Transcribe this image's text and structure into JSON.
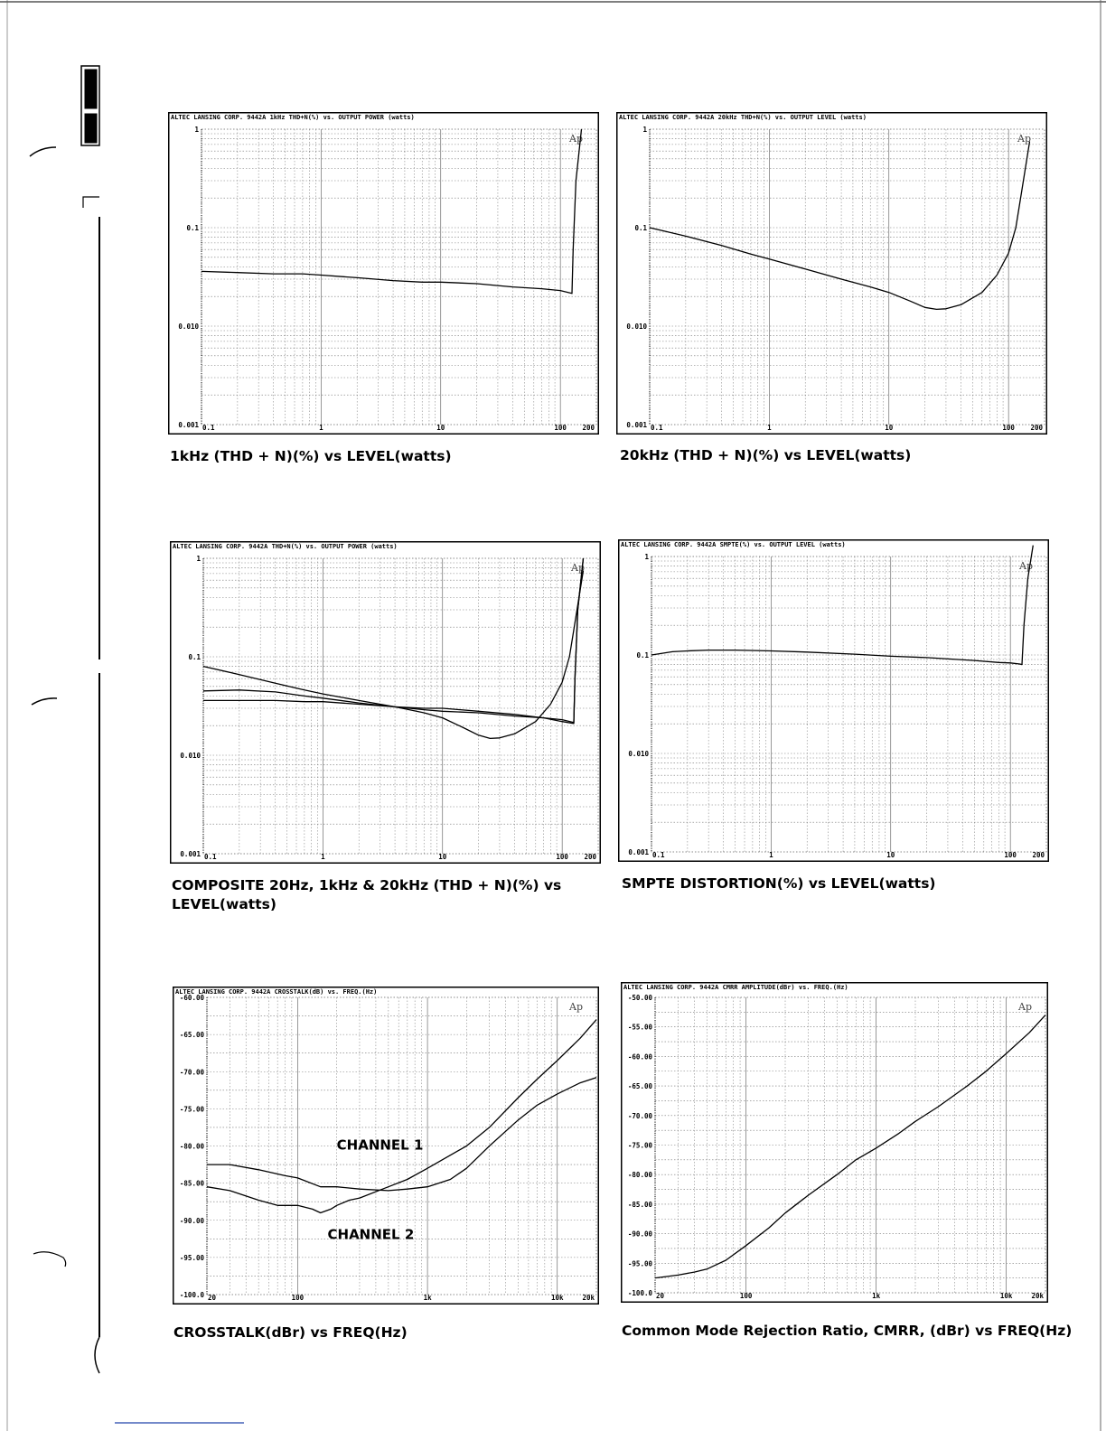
{
  "charts": [
    {
      "id": "c1",
      "header": "ALTEC LANSING CORP.  9442A  1kHz  THD+N(%)  vs.  OUTPUT POWER (watts)",
      "logo": "Ap",
      "caption": "1kHz (THD + N)(%) vs LEVEL(watts)"
    },
    {
      "id": "c2",
      "header": "ALTEC LANSING CORP.  9442A  20kHz  THD+N(%)  vs.  OUTPUT LEVEL (watts)",
      "logo": "Ap",
      "caption": "20kHz (THD + N)(%) vs LEVEL(watts)"
    },
    {
      "id": "c3",
      "header": "ALTEC LANSING CORP.  9442A  THD+N(%)  vs.  OUTPUT POWER (watts)",
      "logo": "Ap",
      "caption": "COMPOSITE 20Hz, 1kHz & 20kHz (THD + N)(%) vs LEVEL(watts)"
    },
    {
      "id": "c4",
      "header": "ALTEC LANSING CORP.  9442A  SMPTE(%)  vs.  OUTPUT LEVEL (watts)",
      "logo": "Ap",
      "caption": "SMPTE DISTORTION(%) vs LEVEL(watts)"
    },
    {
      "id": "c5",
      "header": "ALTEC LANSING CORP.  9442A  CROSSTALK(dB)  vs.  FREQ.(Hz)",
      "logo": "Ap",
      "caption": "CROSSTALK(dBr) vs FREQ(Hz)",
      "annotations": [
        "CHANNEL 1",
        "CHANNEL 2"
      ]
    },
    {
      "id": "c6",
      "header": "ALTEC LANSING CORP.  9442A  CMRR AMPLITUDE(dBr)  vs.  FREQ.(Hz)",
      "logo": "Ap",
      "caption": "Common Mode Rejection Ratio, CMRR, (dBr) vs FREQ(Hz)"
    }
  ],
  "chart_data": [
    {
      "type": "line",
      "title": "",
      "x_scale": "log",
      "y_scale": "log",
      "xlim": [
        0.1,
        200
      ],
      "ylim": [
        0.001,
        1
      ],
      "x_ticks": [
        {
          "v": 0.1,
          "label": "0.1"
        },
        {
          "v": 1,
          "label": "1"
        },
        {
          "v": 10,
          "label": "10"
        },
        {
          "v": 100,
          "label": "100"
        },
        {
          "v": 200,
          "label": "200"
        }
      ],
      "y_ticks": [
        {
          "v": 1,
          "label": "1"
        },
        {
          "v": 0.1,
          "label": "0.1"
        },
        {
          "v": 0.01,
          "label": "0.010"
        },
        {
          "v": 0.001,
          "label": "0.001"
        }
      ],
      "series": [
        {
          "x": [
            0.1,
            0.2,
            0.4,
            0.7,
            1,
            2,
            4,
            7,
            10,
            20,
            40,
            70,
            100,
            125,
            128,
            135,
            150
          ],
          "y": [
            0.036,
            0.035,
            0.034,
            0.034,
            0.033,
            0.031,
            0.029,
            0.028,
            0.028,
            0.027,
            0.025,
            0.024,
            0.023,
            0.0215,
            0.06,
            0.3,
            1.0
          ]
        }
      ]
    },
    {
      "type": "line",
      "title": "",
      "x_scale": "log",
      "y_scale": "log",
      "xlim": [
        0.1,
        200
      ],
      "ylim": [
        0.001,
        1
      ],
      "x_ticks": [
        {
          "v": 0.1,
          "label": "0.1"
        },
        {
          "v": 1,
          "label": "1"
        },
        {
          "v": 10,
          "label": "10"
        },
        {
          "v": 100,
          "label": "100"
        },
        {
          "v": 200,
          "label": "200"
        }
      ],
      "y_ticks": [
        {
          "v": 1,
          "label": "1"
        },
        {
          "v": 0.1,
          "label": "0.1"
        },
        {
          "v": 0.01,
          "label": "0.010"
        },
        {
          "v": 0.001,
          "label": "0.001"
        }
      ],
      "series": [
        {
          "x": [
            0.1,
            0.2,
            0.4,
            0.7,
            1,
            2,
            4,
            7,
            10,
            15,
            20,
            25,
            30,
            40,
            60,
            80,
            100,
            115,
            130,
            150
          ],
          "y": [
            0.1,
            0.082,
            0.066,
            0.054,
            0.048,
            0.038,
            0.03,
            0.025,
            0.022,
            0.018,
            0.0155,
            0.0148,
            0.015,
            0.0165,
            0.022,
            0.033,
            0.055,
            0.1,
            0.25,
            0.75
          ]
        }
      ]
    },
    {
      "type": "line",
      "title": "",
      "x_scale": "log",
      "y_scale": "log",
      "xlim": [
        0.1,
        200
      ],
      "ylim": [
        0.001,
        1
      ],
      "x_ticks": [
        {
          "v": 0.1,
          "label": "0.1"
        },
        {
          "v": 1,
          "label": "1"
        },
        {
          "v": 10,
          "label": "10"
        },
        {
          "v": 100,
          "label": "100"
        },
        {
          "v": 200,
          "label": "200"
        }
      ],
      "y_ticks": [
        {
          "v": 1,
          "label": "1"
        },
        {
          "v": 0.1,
          "label": "0.1"
        },
        {
          "v": 0.01,
          "label": "0.010"
        },
        {
          "v": 0.001,
          "label": "0.001"
        }
      ],
      "series": [
        {
          "x": [
            0.1,
            0.2,
            0.4,
            0.7,
            1,
            2,
            4,
            7,
            10,
            15,
            20,
            25,
            30,
            40,
            60,
            80,
            100,
            115,
            130,
            150
          ],
          "y": [
            0.08,
            0.066,
            0.054,
            0.046,
            0.042,
            0.036,
            0.031,
            0.027,
            0.024,
            0.019,
            0.016,
            0.0148,
            0.015,
            0.0165,
            0.022,
            0.033,
            0.055,
            0.1,
            0.25,
            0.75
          ]
        },
        {
          "x": [
            0.1,
            0.2,
            0.4,
            0.7,
            1,
            2,
            4,
            7,
            10,
            20,
            40,
            70,
            100,
            125,
            128,
            135,
            150
          ],
          "y": [
            0.045,
            0.046,
            0.044,
            0.04,
            0.038,
            0.034,
            0.031,
            0.029,
            0.028,
            0.027,
            0.025,
            0.024,
            0.023,
            0.0215,
            0.06,
            0.3,
            1.0
          ]
        },
        {
          "x": [
            0.1,
            0.2,
            0.4,
            0.7,
            1,
            2,
            4,
            7,
            10,
            20,
            40,
            70,
            100,
            125,
            128,
            135,
            150
          ],
          "y": [
            0.036,
            0.036,
            0.036,
            0.035,
            0.035,
            0.033,
            0.031,
            0.03,
            0.03,
            0.028,
            0.026,
            0.024,
            0.022,
            0.021,
            0.06,
            0.3,
            1.0
          ]
        }
      ]
    },
    {
      "type": "line",
      "title": "",
      "x_scale": "log",
      "y_scale": "log",
      "xlim": [
        0.1,
        200
      ],
      "ylim": [
        0.001,
        1
      ],
      "x_ticks": [
        {
          "v": 0.1,
          "label": "0.1"
        },
        {
          "v": 1,
          "label": "1"
        },
        {
          "v": 10,
          "label": "10"
        },
        {
          "v": 100,
          "label": "100"
        },
        {
          "v": 200,
          "label": "200"
        }
      ],
      "y_ticks": [
        {
          "v": 1,
          "label": "1"
        },
        {
          "v": 0.1,
          "label": "0.1"
        },
        {
          "v": 0.01,
          "label": "0.010"
        },
        {
          "v": 0.001,
          "label": "0.001"
        }
      ],
      "series": [
        {
          "x": [
            0.1,
            0.15,
            0.2,
            0.3,
            0.5,
            1,
            2,
            5,
            10,
            20,
            50,
            80,
            100,
            120,
            125,
            130,
            140,
            155
          ],
          "y": [
            0.1,
            0.108,
            0.11,
            0.112,
            0.112,
            0.11,
            0.107,
            0.102,
            0.097,
            0.094,
            0.088,
            0.084,
            0.083,
            0.081,
            0.08,
            0.2,
            0.6,
            1.3
          ]
        }
      ]
    },
    {
      "type": "line",
      "title": "",
      "x_scale": "log",
      "y_scale": "linear",
      "xlim": [
        20,
        20000
      ],
      "ylim": [
        -100,
        -60
      ],
      "x_ticks": [
        {
          "v": 20,
          "label": "20"
        },
        {
          "v": 100,
          "label": "100"
        },
        {
          "v": 1000,
          "label": "1k"
        },
        {
          "v": 10000,
          "label": "10k"
        },
        {
          "v": 20000,
          "label": "20k"
        }
      ],
      "y_ticks": [
        {
          "v": -60,
          "label": "-60.00"
        },
        {
          "v": -65,
          "label": "-65.00"
        },
        {
          "v": -70,
          "label": "-70.00"
        },
        {
          "v": -75,
          "label": "-75.00"
        },
        {
          "v": -80,
          "label": "-80.00"
        },
        {
          "v": -85,
          "label": "-85.00"
        },
        {
          "v": -90,
          "label": "-90.00"
        },
        {
          "v": -95,
          "label": "-95.00"
        },
        {
          "v": -100,
          "label": "-100.0"
        }
      ],
      "series": [
        {
          "x": [
            20,
            30,
            50,
            80,
            100,
            150,
            200,
            300,
            500,
            700,
            1000,
            1500,
            2000,
            3000,
            5000,
            7000,
            10000,
            15000,
            20000
          ],
          "y": [
            -82.5,
            -82.5,
            -83.2,
            -84.0,
            -84.3,
            -85.5,
            -85.5,
            -85.8,
            -86.0,
            -85.8,
            -85.5,
            -84.5,
            -83.0,
            -80.0,
            -76.5,
            -74.5,
            -73.0,
            -71.5,
            -70.8
          ]
        },
        {
          "x": [
            20,
            30,
            50,
            70,
            100,
            130,
            150,
            180,
            200,
            250,
            300,
            500,
            700,
            1000,
            2000,
            3000,
            5000,
            7000,
            10000,
            15000,
            20000
          ],
          "y": [
            -85.5,
            -86.0,
            -87.3,
            -88.0,
            -88.0,
            -88.5,
            -89.0,
            -88.5,
            -88.0,
            -87.3,
            -87.0,
            -85.5,
            -84.5,
            -83.0,
            -80.0,
            -77.5,
            -73.5,
            -71.0,
            -68.5,
            -65.5,
            -63.0
          ]
        }
      ]
    },
    {
      "type": "line",
      "title": "",
      "x_scale": "log",
      "y_scale": "linear",
      "xlim": [
        20,
        20000
      ],
      "ylim": [
        -100,
        -50
      ],
      "x_ticks": [
        {
          "v": 20,
          "label": "20"
        },
        {
          "v": 100,
          "label": "100"
        },
        {
          "v": 1000,
          "label": "1k"
        },
        {
          "v": 10000,
          "label": "10k"
        },
        {
          "v": 20000,
          "label": "20k"
        }
      ],
      "y_ticks": [
        {
          "v": -50,
          "label": "-50.00"
        },
        {
          "v": -55,
          "label": "-55.00"
        },
        {
          "v": -60,
          "label": "-60.00"
        },
        {
          "v": -65,
          "label": "-65.00"
        },
        {
          "v": -70,
          "label": "-70.00"
        },
        {
          "v": -75,
          "label": "-75.00"
        },
        {
          "v": -80,
          "label": "-80.00"
        },
        {
          "v": -85,
          "label": "-85.00"
        },
        {
          "v": -90,
          "label": "-90.00"
        },
        {
          "v": -95,
          "label": "-95.00"
        },
        {
          "v": -100,
          "label": "-100.0"
        }
      ],
      "series": [
        {
          "x": [
            20,
            30,
            40,
            50,
            70,
            100,
            150,
            200,
            300,
            500,
            700,
            1000,
            1500,
            2000,
            3000,
            5000,
            7000,
            10000,
            15000,
            20000
          ],
          "y": [
            -97.5,
            -97.0,
            -96.5,
            -96.0,
            -94.5,
            -92.0,
            -89.0,
            -86.5,
            -83.5,
            -80.0,
            -77.5,
            -75.5,
            -73.0,
            -71.0,
            -68.5,
            -65.0,
            -62.5,
            -59.5,
            -56.0,
            -53.0
          ]
        }
      ]
    }
  ]
}
